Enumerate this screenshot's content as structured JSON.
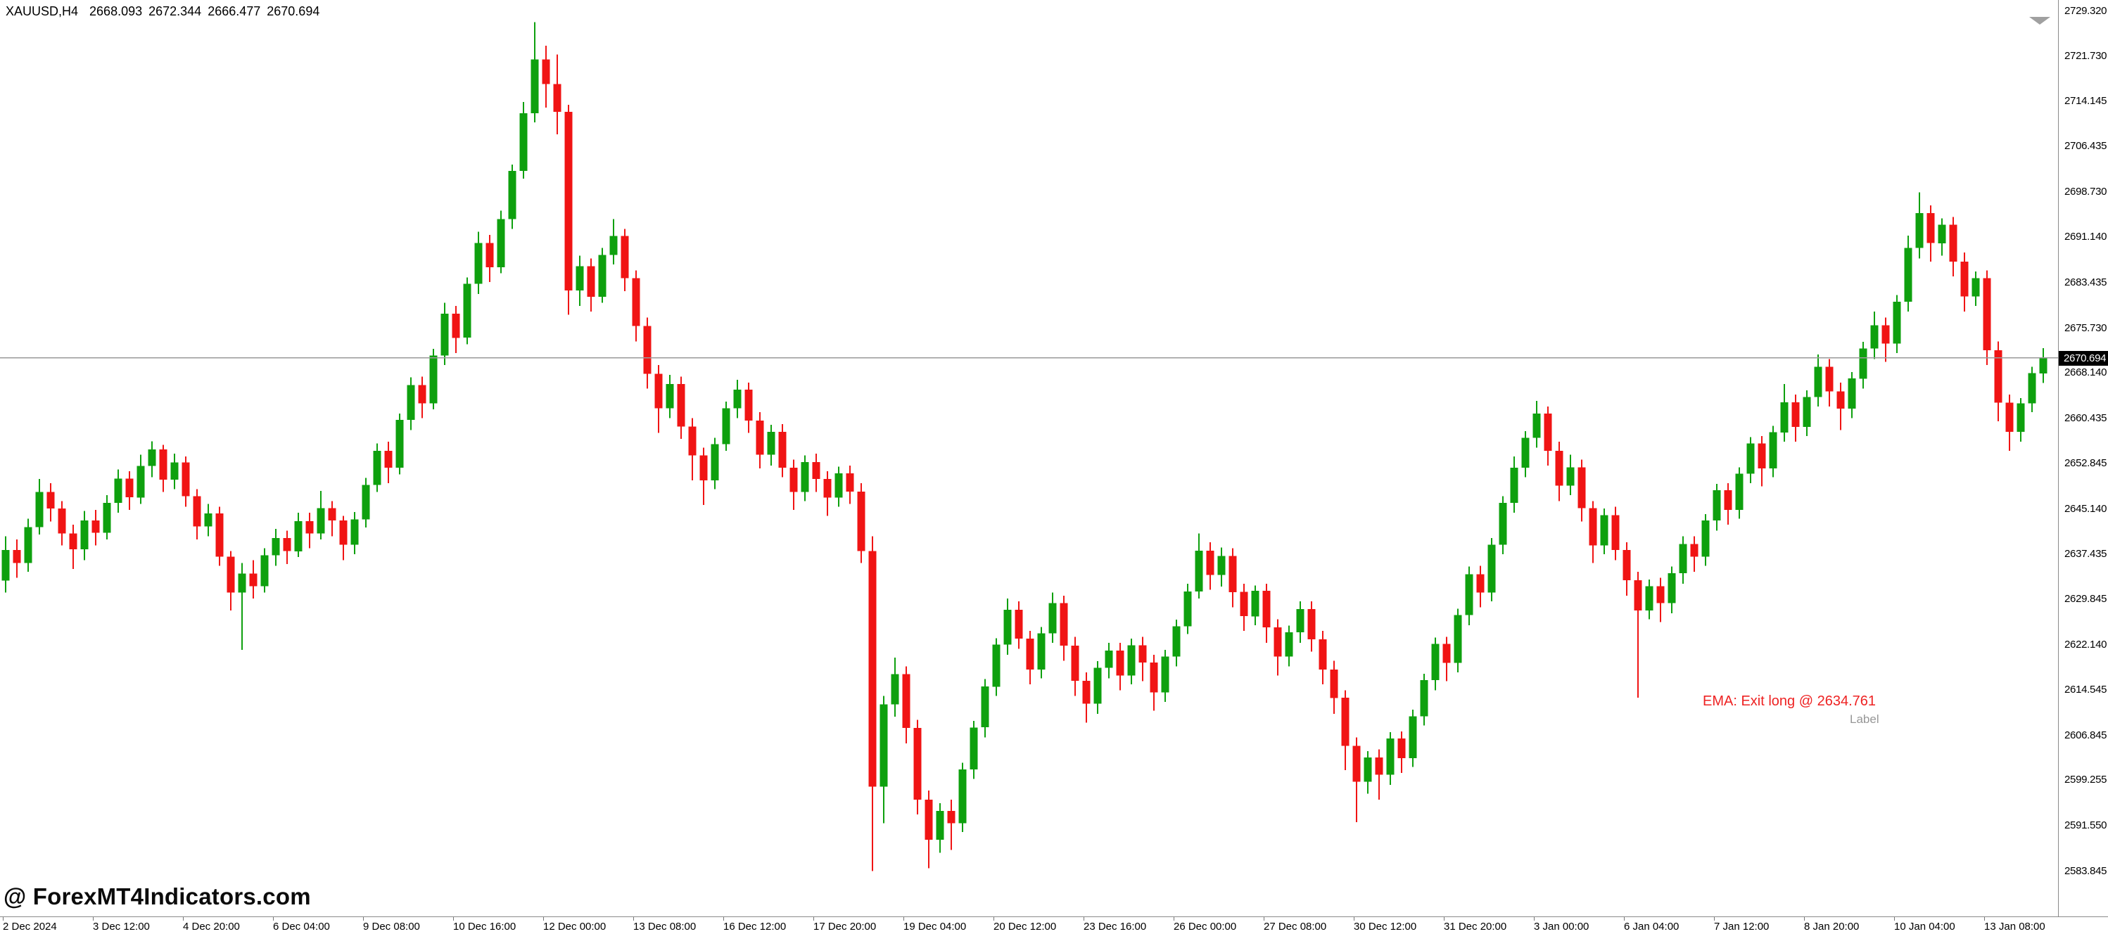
{
  "info_bar": {
    "symbol": "XAUUSD,H4",
    "open": "2668.093",
    "high": "2672.344",
    "low": "2666.477",
    "close": "2670.694"
  },
  "watermark": "@ ForexMT4Indicators.com",
  "annotation": {
    "text": "EMA: Exit long @ 2634.761",
    "label": "Label"
  },
  "price_tag": {
    "value": "2670.694"
  },
  "colors": {
    "bull": "#0ea00e",
    "bear": "#f01414",
    "price_line": "#9a9a9a",
    "tag_bg": "#000000",
    "tag_text": "#ffffff",
    "annotation_red": "#ee2222",
    "annotation_gray": "#979797"
  },
  "chart_data": {
    "type": "candlestick",
    "title": "XAUUSD,H4",
    "symbol": "XAUUSD",
    "timeframe": "H4",
    "xlabel": "",
    "ylabel": "",
    "grid": false,
    "ylim": [
      2583.845,
      2729.32
    ],
    "current_price": 2670.694,
    "y_tick_labels": [
      "2729.320",
      "2721.730",
      "2714.145",
      "2706.435",
      "2698.730",
      "2691.140",
      "2683.435",
      "2675.730",
      "2668.140",
      "2660.435",
      "2652.845",
      "2645.140",
      "2637.435",
      "2629.845",
      "2622.140",
      "2614.545",
      "2606.845",
      "2599.255",
      "2591.550",
      "2583.845"
    ],
    "x_tick_labels": [
      "2 Dec 2024",
      "3 Dec 12:00",
      "4 Dec 20:00",
      "6 Dec 04:00",
      "9 Dec 08:00",
      "10 Dec 16:00",
      "12 Dec 00:00",
      "13 Dec 08:00",
      "16 Dec 12:00",
      "17 Dec 20:00",
      "19 Dec 04:00",
      "20 Dec 12:00",
      "23 Dec 16:00",
      "26 Dec 00:00",
      "27 Dec 08:00",
      "30 Dec 12:00",
      "31 Dec 20:00",
      "3 Jan 00:00",
      "6 Jan 04:00",
      "7 Jan 12:00",
      "8 Jan 20:00",
      "10 Jan 04:00",
      "13 Jan 08:00"
    ],
    "candles": [
      [
        2633.0,
        2640.5,
        2631.0,
        2638.2
      ],
      [
        2638.2,
        2640.0,
        2633.5,
        2636.0
      ],
      [
        2636.0,
        2643.5,
        2634.5,
        2642.1
      ],
      [
        2642.1,
        2650.2,
        2640.8,
        2648.0
      ],
      [
        2648.0,
        2649.5,
        2643.0,
        2645.2
      ],
      [
        2645.2,
        2646.5,
        2639.0,
        2641.0
      ],
      [
        2641.0,
        2642.5,
        2635.0,
        2638.3
      ],
      [
        2638.3,
        2644.8,
        2636.5,
        2643.2
      ],
      [
        2643.2,
        2645.0,
        2639.0,
        2641.1
      ],
      [
        2641.1,
        2647.5,
        2640.0,
        2646.2
      ],
      [
        2646.2,
        2651.8,
        2644.5,
        2650.3
      ],
      [
        2650.3,
        2651.5,
        2645.0,
        2647.1
      ],
      [
        2647.1,
        2654.3,
        2646.0,
        2652.4
      ],
      [
        2652.4,
        2656.6,
        2650.5,
        2655.2
      ],
      [
        2655.2,
        2656.0,
        2648.0,
        2650.1
      ],
      [
        2650.1,
        2654.5,
        2648.5,
        2653.0
      ],
      [
        2653.0,
        2654.0,
        2645.5,
        2647.3
      ],
      [
        2647.3,
        2648.5,
        2640.0,
        2642.2
      ],
      [
        2642.2,
        2646.0,
        2640.5,
        2644.4
      ],
      [
        2644.4,
        2645.5,
        2635.5,
        2637.1
      ],
      [
        2637.1,
        2638.0,
        2628.0,
        2631.0
      ],
      [
        2631.0,
        2636.0,
        2621.3,
        2634.2
      ],
      [
        2634.2,
        2636.5,
        2630.0,
        2632.1
      ],
      [
        2632.1,
        2638.5,
        2631.0,
        2637.3
      ],
      [
        2637.3,
        2641.8,
        2635.5,
        2640.2
      ],
      [
        2640.2,
        2641.5,
        2635.8,
        2638.0
      ],
      [
        2638.0,
        2644.5,
        2637.0,
        2643.1
      ],
      [
        2643.1,
        2644.5,
        2638.5,
        2641.0
      ],
      [
        2641.0,
        2648.2,
        2640.0,
        2645.3
      ],
      [
        2645.3,
        2646.5,
        2640.5,
        2643.2
      ],
      [
        2643.2,
        2644.0,
        2636.5,
        2639.1
      ],
      [
        2639.1,
        2644.6,
        2637.5,
        2643.4
      ],
      [
        2643.4,
        2650.4,
        2642.0,
        2649.2
      ],
      [
        2649.2,
        2656.2,
        2648.0,
        2655.0
      ],
      [
        2655.0,
        2656.5,
        2649.5,
        2652.1
      ],
      [
        2652.1,
        2661.3,
        2651.0,
        2660.2
      ],
      [
        2660.2,
        2667.4,
        2658.5,
        2666.1
      ],
      [
        2666.1,
        2667.5,
        2660.5,
        2663.0
      ],
      [
        2663.0,
        2672.2,
        2662.0,
        2671.1
      ],
      [
        2671.1,
        2680.0,
        2669.5,
        2678.2
      ],
      [
        2678.2,
        2679.5,
        2671.5,
        2674.1
      ],
      [
        2674.1,
        2684.3,
        2673.0,
        2683.2
      ],
      [
        2683.2,
        2692.0,
        2681.5,
        2690.1
      ],
      [
        2690.1,
        2691.5,
        2683.5,
        2686.0
      ],
      [
        2686.0,
        2695.6,
        2685.0,
        2694.2
      ],
      [
        2694.2,
        2703.4,
        2692.5,
        2702.3
      ],
      [
        2702.3,
        2714.0,
        2701.0,
        2712.1
      ],
      [
        2712.1,
        2727.5,
        2710.5,
        2721.2
      ],
      [
        2721.2,
        2723.5,
        2713.0,
        2717.0
      ],
      [
        2717.0,
        2722.0,
        2708.5,
        2712.3
      ],
      [
        2712.3,
        2713.5,
        2678.0,
        2682.1
      ],
      [
        2682.1,
        2688.0,
        2679.5,
        2686.2
      ],
      [
        2686.2,
        2687.5,
        2678.5,
        2681.0
      ],
      [
        2681.0,
        2689.3,
        2680.0,
        2688.1
      ],
      [
        2688.1,
        2694.2,
        2686.5,
        2691.3
      ],
      [
        2691.3,
        2692.5,
        2682.0,
        2684.2
      ],
      [
        2684.2,
        2685.5,
        2673.5,
        2676.1
      ],
      [
        2676.1,
        2677.5,
        2665.5,
        2668.0
      ],
      [
        2668.0,
        2669.5,
        2658.0,
        2662.2
      ],
      [
        2662.2,
        2667.8,
        2660.5,
        2666.3
      ],
      [
        2666.3,
        2667.5,
        2657.0,
        2659.1
      ],
      [
        2659.1,
        2660.5,
        2650.0,
        2654.2
      ],
      [
        2654.2,
        2655.5,
        2645.8,
        2650.0
      ],
      [
        2650.0,
        2657.2,
        2648.5,
        2656.1
      ],
      [
        2656.1,
        2663.3,
        2655.0,
        2662.2
      ],
      [
        2662.2,
        2667.0,
        2660.5,
        2665.3
      ],
      [
        2665.3,
        2666.5,
        2658.0,
        2660.1
      ],
      [
        2660.1,
        2661.5,
        2652.0,
        2654.3
      ],
      [
        2654.3,
        2659.4,
        2652.5,
        2658.2
      ],
      [
        2658.2,
        2659.5,
        2650.5,
        2652.1
      ],
      [
        2652.1,
        2653.5,
        2645.0,
        2648.0
      ],
      [
        2648.0,
        2654.2,
        2646.5,
        2653.1
      ],
      [
        2653.1,
        2654.5,
        2648.0,
        2650.2
      ],
      [
        2650.2,
        2651.5,
        2644.0,
        2647.1
      ],
      [
        2647.1,
        2652.3,
        2645.5,
        2651.2
      ],
      [
        2651.2,
        2652.5,
        2646.0,
        2648.1
      ],
      [
        2648.1,
        2649.5,
        2636.0,
        2638.0
      ],
      [
        2638.0,
        2640.5,
        2583.9,
        2598.2
      ],
      [
        2598.2,
        2613.5,
        2592.0,
        2612.1
      ],
      [
        2612.1,
        2620.0,
        2610.0,
        2617.2
      ],
      [
        2617.2,
        2618.5,
        2605.5,
        2608.1
      ],
      [
        2608.1,
        2609.5,
        2593.5,
        2596.0
      ],
      [
        2596.0,
        2597.5,
        2584.4,
        2589.2
      ],
      [
        2589.2,
        2595.4,
        2587.0,
        2594.1
      ],
      [
        2594.1,
        2596.0,
        2587.5,
        2592.0
      ],
      [
        2592.0,
        2602.2,
        2590.5,
        2601.1
      ],
      [
        2601.1,
        2609.3,
        2599.5,
        2608.2
      ],
      [
        2608.2,
        2616.4,
        2606.5,
        2615.1
      ],
      [
        2615.1,
        2623.3,
        2613.5,
        2622.2
      ],
      [
        2622.2,
        2630.0,
        2620.5,
        2628.1
      ],
      [
        2628.1,
        2629.5,
        2621.5,
        2623.2
      ],
      [
        2623.2,
        2624.5,
        2615.5,
        2618.0
      ],
      [
        2618.0,
        2625.2,
        2616.5,
        2624.1
      ],
      [
        2624.1,
        2631.0,
        2622.5,
        2629.2
      ],
      [
        2629.2,
        2630.5,
        2619.5,
        2622.0
      ],
      [
        2622.0,
        2623.5,
        2613.5,
        2616.1
      ],
      [
        2616.1,
        2617.5,
        2609.0,
        2612.2
      ],
      [
        2612.2,
        2619.4,
        2610.5,
        2618.3
      ],
      [
        2618.3,
        2622.5,
        2616.5,
        2621.2
      ],
      [
        2621.2,
        2622.5,
        2614.5,
        2617.0
      ],
      [
        2617.0,
        2623.2,
        2615.5,
        2622.1
      ],
      [
        2622.1,
        2623.5,
        2616.0,
        2619.2
      ],
      [
        2619.2,
        2620.5,
        2611.0,
        2614.1
      ],
      [
        2614.1,
        2621.3,
        2612.5,
        2620.2
      ],
      [
        2620.2,
        2626.4,
        2618.5,
        2625.3
      ],
      [
        2625.3,
        2632.5,
        2624.0,
        2631.2
      ],
      [
        2631.2,
        2641.0,
        2630.0,
        2638.1
      ],
      [
        2638.1,
        2639.5,
        2631.5,
        2634.0
      ],
      [
        2634.0,
        2638.6,
        2632.0,
        2637.2
      ],
      [
        2637.2,
        2638.5,
        2628.5,
        2631.1
      ],
      [
        2631.1,
        2632.5,
        2624.5,
        2627.0
      ],
      [
        2627.0,
        2632.2,
        2625.5,
        2631.3
      ],
      [
        2631.3,
        2632.5,
        2622.5,
        2625.1
      ],
      [
        2625.1,
        2626.5,
        2617.0,
        2620.2
      ],
      [
        2620.2,
        2625.4,
        2618.5,
        2624.3
      ],
      [
        2624.3,
        2629.5,
        2622.5,
        2628.2
      ],
      [
        2628.2,
        2629.5,
        2621.0,
        2623.1
      ],
      [
        2623.1,
        2624.5,
        2615.5,
        2618.0
      ],
      [
        2618.0,
        2619.5,
        2610.5,
        2613.2
      ],
      [
        2613.2,
        2614.5,
        2601.0,
        2605.1
      ],
      [
        2605.1,
        2606.5,
        2592.2,
        2599.0
      ],
      [
        2599.0,
        2604.2,
        2597.0,
        2603.1
      ],
      [
        2603.1,
        2604.5,
        2596.0,
        2600.2
      ],
      [
        2600.2,
        2607.4,
        2598.5,
        2606.3
      ],
      [
        2606.3,
        2607.5,
        2600.5,
        2603.0
      ],
      [
        2603.0,
        2611.2,
        2601.5,
        2610.1
      ],
      [
        2610.1,
        2617.3,
        2608.5,
        2616.2
      ],
      [
        2616.2,
        2623.4,
        2614.5,
        2622.3
      ],
      [
        2622.3,
        2623.5,
        2616.0,
        2619.1
      ],
      [
        2619.1,
        2628.3,
        2617.5,
        2627.2
      ],
      [
        2627.2,
        2635.4,
        2625.5,
        2634.1
      ],
      [
        2634.1,
        2635.5,
        2628.5,
        2631.0
      ],
      [
        2631.0,
        2640.2,
        2629.5,
        2639.1
      ],
      [
        2639.1,
        2647.3,
        2637.5,
        2646.2
      ],
      [
        2646.2,
        2654.0,
        2644.5,
        2652.1
      ],
      [
        2652.1,
        2658.3,
        2650.5,
        2657.2
      ],
      [
        2657.2,
        2663.4,
        2655.5,
        2661.3
      ],
      [
        2661.3,
        2662.5,
        2652.5,
        2655.0
      ],
      [
        2655.0,
        2656.5,
        2646.5,
        2649.1
      ],
      [
        2649.1,
        2654.3,
        2647.5,
        2652.2
      ],
      [
        2652.2,
        2653.5,
        2643.0,
        2645.3
      ],
      [
        2645.3,
        2646.5,
        2636.0,
        2639.0
      ],
      [
        2639.0,
        2645.2,
        2637.5,
        2644.1
      ],
      [
        2644.1,
        2645.5,
        2636.5,
        2638.2
      ],
      [
        2638.2,
        2639.5,
        2630.5,
        2633.1
      ],
      [
        2633.1,
        2634.5,
        2613.2,
        2628.0
      ],
      [
        2628.0,
        2633.2,
        2626.5,
        2632.1
      ],
      [
        2632.1,
        2633.5,
        2626.0,
        2629.2
      ],
      [
        2629.2,
        2635.4,
        2627.5,
        2634.3
      ],
      [
        2634.3,
        2640.5,
        2632.5,
        2639.2
      ],
      [
        2639.2,
        2640.5,
        2634.5,
        2637.1
      ],
      [
        2637.1,
        2644.3,
        2635.5,
        2643.2
      ],
      [
        2643.2,
        2649.4,
        2641.5,
        2648.3
      ],
      [
        2648.3,
        2649.5,
        2642.5,
        2645.0
      ],
      [
        2645.0,
        2652.2,
        2643.5,
        2651.1
      ],
      [
        2651.1,
        2657.3,
        2649.5,
        2656.2
      ],
      [
        2656.2,
        2657.5,
        2649.0,
        2652.0
      ],
      [
        2652.0,
        2659.2,
        2650.5,
        2658.1
      ],
      [
        2658.1,
        2666.3,
        2656.5,
        2663.2
      ],
      [
        2663.2,
        2664.5,
        2656.5,
        2659.0
      ],
      [
        2659.0,
        2665.2,
        2657.5,
        2664.1
      ],
      [
        2664.1,
        2671.3,
        2662.5,
        2669.2
      ],
      [
        2669.2,
        2670.5,
        2662.5,
        2665.0
      ],
      [
        2665.0,
        2666.5,
        2658.5,
        2662.1
      ],
      [
        2662.1,
        2668.3,
        2660.5,
        2667.2
      ],
      [
        2667.2,
        2673.4,
        2665.5,
        2672.3
      ],
      [
        2672.3,
        2678.5,
        2670.5,
        2676.2
      ],
      [
        2676.2,
        2677.5,
        2670.0,
        2673.1
      ],
      [
        2673.1,
        2681.3,
        2671.5,
        2680.2
      ],
      [
        2680.2,
        2691.4,
        2678.5,
        2689.3
      ],
      [
        2689.3,
        2698.7,
        2687.5,
        2695.2
      ],
      [
        2695.2,
        2696.5,
        2687.0,
        2690.1
      ],
      [
        2690.1,
        2694.3,
        2688.0,
        2693.2
      ],
      [
        2693.2,
        2694.5,
        2684.5,
        2687.0
      ],
      [
        2687.0,
        2688.5,
        2678.5,
        2681.1
      ],
      [
        2681.1,
        2685.3,
        2679.5,
        2684.2
      ],
      [
        2684.2,
        2685.5,
        2669.5,
        2672.0
      ],
      [
        2672.0,
        2673.5,
        2660.0,
        2663.1
      ],
      [
        2663.1,
        2664.5,
        2655.0,
        2658.2
      ],
      [
        2658.2,
        2663.9,
        2656.5,
        2663.0
      ],
      [
        2663.0,
        2669.2,
        2661.5,
        2668.1
      ],
      [
        2668.093,
        2672.344,
        2666.477,
        2670.694
      ]
    ]
  }
}
